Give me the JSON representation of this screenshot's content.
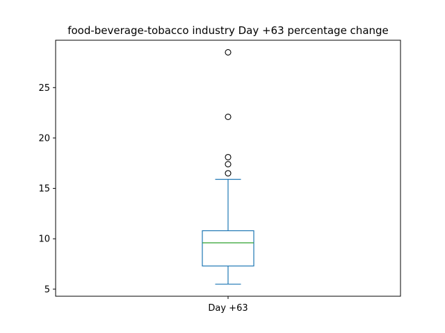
{
  "chart_data": {
    "type": "box",
    "title": "food-beverage-tobacco industry Day +63 percentage change",
    "xlabel": "",
    "ylabel": "",
    "categories": [
      "Day +63"
    ],
    "ylim": [
      4.3,
      29.7
    ],
    "yticks": [
      5,
      10,
      15,
      20,
      25
    ],
    "ytick_labels": [
      "5",
      "10",
      "15",
      "20",
      "25"
    ],
    "grid": false,
    "boxes": [
      {
        "name": "Day +63",
        "whisker_low": 5.5,
        "q1": 7.3,
        "median": 9.6,
        "q3": 10.8,
        "whisker_high": 15.9,
        "outliers": [
          16.5,
          17.4,
          18.1,
          22.1,
          28.5
        ]
      }
    ],
    "colors": {
      "box": "#1f77b4",
      "median": "#2ca02c",
      "outlier_edge": "#000000"
    }
  }
}
